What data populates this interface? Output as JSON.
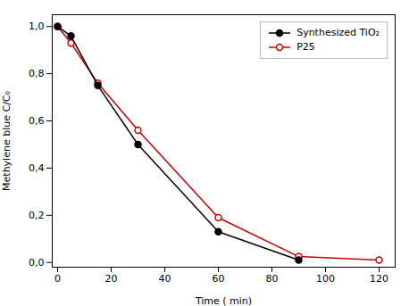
{
  "chart_data": {
    "type": "line",
    "xlabel": "Time ( min)",
    "ylabel": "Methylene blue C/C₀",
    "series": [
      {
        "name": "Synthesized TiO₂",
        "color": "#000000",
        "marker": "circle",
        "x": [
          0,
          5,
          15,
          30,
          60,
          90
        ],
        "values": [
          1.0,
          0.96,
          0.75,
          0.5,
          0.13,
          0.01
        ]
      },
      {
        "name": "P25",
        "color": "#cc0000",
        "marker": "open_circle",
        "x": [
          0,
          5,
          15,
          30,
          60,
          90,
          120
        ],
        "values": [
          1.0,
          0.93,
          0.76,
          0.56,
          0.19,
          0.025,
          0.01
        ]
      }
    ],
    "xlim": [
      -2,
      126
    ],
    "ylim": [
      -0.02,
      1.05
    ],
    "xticks": [
      0,
      20,
      40,
      60,
      80,
      100,
      120
    ],
    "yticks": [
      {
        "value": 0.0,
        "label": "0,0"
      },
      {
        "value": 0.2,
        "label": "0,2"
      },
      {
        "value": 0.4,
        "label": "0,4"
      },
      {
        "value": 0.6,
        "label": "0,6"
      },
      {
        "value": 0.8,
        "label": "0,8"
      },
      {
        "value": 1.0,
        "label": "1,0"
      }
    ],
    "legend": "upper right",
    "grid": false
  }
}
